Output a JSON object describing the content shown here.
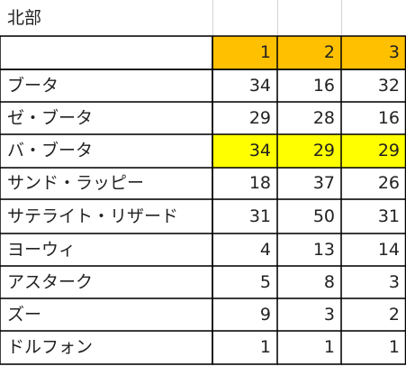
{
  "title": "北部",
  "columns": [
    "1",
    "2",
    "3"
  ],
  "rows": [
    {
      "name": "ブータ",
      "values": [
        "34",
        "16",
        "32"
      ]
    },
    {
      "name": "ゼ・ブータ",
      "values": [
        "29",
        "28",
        "16"
      ]
    },
    {
      "name": "バ・ブータ",
      "values": [
        "34",
        "29",
        "29"
      ]
    },
    {
      "name": "サンド・ラッピー",
      "values": [
        "18",
        "37",
        "26"
      ]
    },
    {
      "name": "サテライト・リザード",
      "values": [
        "31",
        "50",
        "31"
      ]
    },
    {
      "name": "ヨーウィ",
      "values": [
        "4",
        "13",
        "14"
      ]
    },
    {
      "name": "アスターク",
      "values": [
        "5",
        "8",
        "3"
      ]
    },
    {
      "name": "ズー",
      "values": [
        "9",
        "3",
        "2"
      ]
    },
    {
      "name": "ドルフォン",
      "values": [
        "1",
        "1",
        "1"
      ]
    }
  ],
  "colors": {
    "header_fill": "#ffc000",
    "highlight_fill": "#ffff00",
    "highlight_row_index": 2,
    "gridline": "#d4d4d4",
    "border": "#000000"
  }
}
